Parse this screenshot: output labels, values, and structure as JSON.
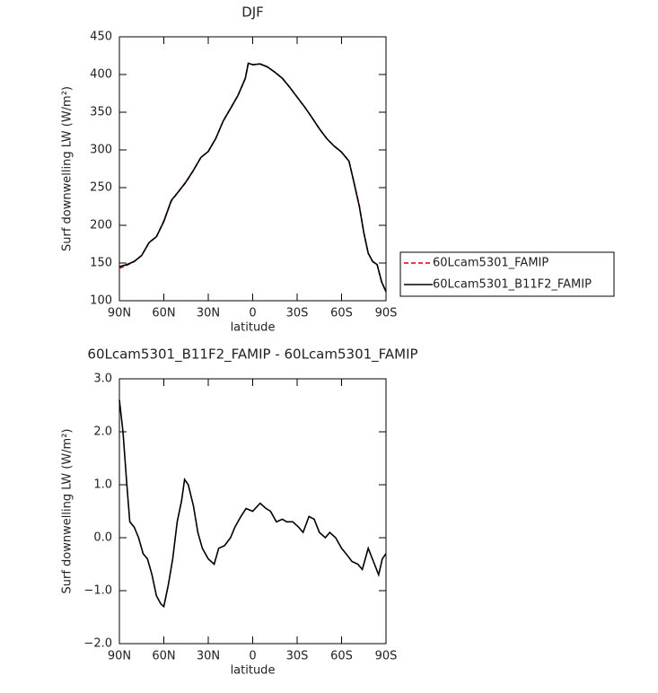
{
  "chart_data": [
    {
      "type": "line",
      "title": "DJF",
      "xlabel": "latitude",
      "ylabel": "Surf downwelling LW (W/m²)",
      "x": [
        90,
        85,
        80,
        75,
        70,
        65,
        60,
        55,
        50,
        45,
        40,
        35,
        30,
        25,
        20,
        15,
        10,
        5,
        3,
        0,
        -5,
        -10,
        -15,
        -20,
        -25,
        -30,
        -35,
        -40,
        -45,
        -50,
        -55,
        -60,
        -65,
        -68,
        -72,
        -75,
        -78,
        -81,
        -84,
        -87,
        -90
      ],
      "series": [
        {
          "name": "60Lcam5301_FAMIP",
          "color": "#e00000",
          "dash": true,
          "values": [
            143,
            147,
            152,
            160,
            177,
            185,
            206,
            232,
            245,
            257,
            273,
            290,
            298,
            315,
            338,
            355,
            372,
            395,
            415,
            413,
            414,
            410,
            403,
            395,
            383,
            370,
            357,
            343,
            328,
            315,
            305,
            297,
            285,
            260,
            226,
            190,
            163,
            152,
            148,
            125,
            112
          ]
        },
        {
          "name": "60Lcam5301_B11F2_FAMIP",
          "color": "#000000",
          "dash": false,
          "values": [
            145,
            148,
            152,
            160,
            177,
            185,
            205,
            233,
            245,
            258,
            273,
            290,
            298,
            315,
            338,
            355,
            372,
            395,
            415,
            413,
            414,
            410,
            403,
            395,
            383,
            370,
            357,
            343,
            328,
            315,
            305,
            297,
            285,
            260,
            225,
            190,
            163,
            152,
            148,
            125,
            112
          ]
        }
      ],
      "xlim": [
        90,
        -90
      ],
      "xticks": [
        {
          "value": 90,
          "label": "90N"
        },
        {
          "value": 60,
          "label": "60N"
        },
        {
          "value": 30,
          "label": "30N"
        },
        0,
        {
          "value": -30,
          "label": "30S"
        },
        {
          "value": -60,
          "label": "60S"
        },
        {
          "value": -90,
          "label": "90S"
        }
      ],
      "ylim": [
        100,
        450
      ],
      "yticks": [
        100,
        150,
        200,
        250,
        300,
        350,
        400,
        450
      ],
      "legend": "right"
    },
    {
      "type": "line",
      "title": "60Lcam5301_B11F2_FAMIP - 60Lcam5301_FAMIP",
      "xlabel": "latitude",
      "ylabel": "Surf downwelling LW (W/m²)",
      "x": [
        90,
        87.6,
        85,
        83,
        80,
        77,
        74,
        71,
        68,
        65,
        62,
        60,
        57,
        54,
        51,
        48,
        46,
        43.5,
        40,
        37,
        34,
        30,
        26,
        23,
        19,
        15,
        12,
        8,
        4.5,
        0,
        -5,
        -9,
        -12,
        -16,
        -20,
        -23,
        -27,
        -31,
        -34,
        -38,
        -41.5,
        -45,
        -49,
        -52,
        -56,
        -60,
        -63,
        -67,
        -71,
        -74,
        -78,
        -81.5,
        -85,
        -87.5,
        -90
      ],
      "series": [
        {
          "name": "60Lcam5301_B11F2_FAMIP - 60Lcam5301_FAMIP",
          "color": "#000000",
          "dash": false,
          "values": [
            2.6,
            2.0,
            1.0,
            0.3,
            0.2,
            0.0,
            -0.3,
            -0.4,
            -0.7,
            -1.1,
            -1.25,
            -1.3,
            -0.9,
            -0.4,
            0.3,
            0.7,
            1.1,
            1.0,
            0.6,
            0.1,
            -0.2,
            -0.4,
            -0.5,
            -0.2,
            -0.15,
            0.0,
            0.2,
            0.4,
            0.55,
            0.5,
            0.65,
            0.55,
            0.5,
            0.3,
            0.35,
            0.3,
            0.3,
            0.2,
            0.1,
            0.4,
            0.35,
            0.1,
            0.0,
            0.1,
            0.0,
            -0.2,
            -0.3,
            -0.45,
            -0.5,
            -0.6,
            -0.2,
            -0.45,
            -0.7,
            -0.4,
            -0.3
          ]
        }
      ],
      "xlim": [
        90,
        -90
      ],
      "xticks": [
        {
          "value": 90,
          "label": "90N"
        },
        {
          "value": 60,
          "label": "60N"
        },
        {
          "value": 30,
          "label": "30N"
        },
        0,
        {
          "value": -30,
          "label": "30S"
        },
        {
          "value": -60,
          "label": "60S"
        },
        {
          "value": -90,
          "label": "90S"
        }
      ],
      "ylim": [
        -2,
        3
      ],
      "yticks": [
        {
          "value": -2,
          "label": "−2.0"
        },
        {
          "value": -1,
          "label": "−1.0"
        },
        {
          "value": 0,
          "label": "0.0"
        },
        {
          "value": 1,
          "label": "1.0"
        },
        {
          "value": 2,
          "label": "2.0"
        },
        {
          "value": 3,
          "label": "3.0"
        }
      ]
    }
  ]
}
